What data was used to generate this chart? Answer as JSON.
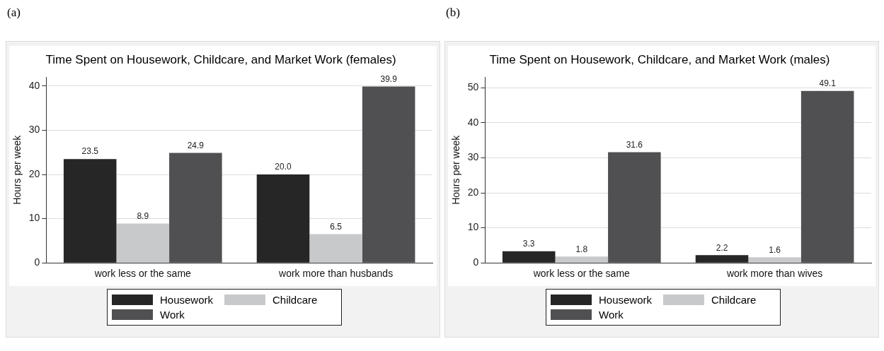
{
  "chart_data": [
    {
      "type": "bar",
      "annotations": [
        "(a)"
      ],
      "title": "Time Spent on Housework, Childcare, and Market Work (females)",
      "ylabel": "Hours per week",
      "categories": [
        "work less or the same",
        "work more than husbands"
      ],
      "series": [
        {
          "name": "Housework",
          "color": "#262626",
          "values": [
            23.5,
            20.0
          ],
          "value_labels": [
            "23.5",
            "20.0"
          ]
        },
        {
          "name": "Childcare",
          "color": "#c8c9cb",
          "values": [
            8.9,
            6.5
          ],
          "value_labels": [
            "8.9",
            "6.5"
          ]
        },
        {
          "name": "Work",
          "color": "#505052",
          "values": [
            24.9,
            39.9
          ],
          "value_labels": [
            "24.9",
            "39.9"
          ]
        }
      ],
      "ylim": [
        0,
        42
      ],
      "yticks": [
        0,
        10,
        20,
        30,
        40
      ],
      "grid": "y",
      "legend": "bottom"
    },
    {
      "type": "bar",
      "annotations": [
        "(b)"
      ],
      "title": "Time Spent on Housework, Childcare, and Market Work (males)",
      "ylabel": "Hours per week",
      "categories": [
        "work less or the same",
        "work more than wives"
      ],
      "series": [
        {
          "name": "Housework",
          "color": "#262626",
          "values": [
            3.3,
            2.2
          ],
          "value_labels": [
            "3.3",
            "2.2"
          ]
        },
        {
          "name": "Childcare",
          "color": "#c8c9cb",
          "values": [
            1.8,
            1.6
          ],
          "value_labels": [
            "1.8",
            "1.6"
          ]
        },
        {
          "name": "Work",
          "color": "#505052",
          "values": [
            31.6,
            49.1
          ],
          "value_labels": [
            "31.6",
            "49.1"
          ]
        }
      ],
      "ylim": [
        0,
        53
      ],
      "yticks": [
        0,
        10,
        20,
        30,
        40,
        50
      ],
      "grid": "y",
      "legend": "bottom"
    }
  ]
}
